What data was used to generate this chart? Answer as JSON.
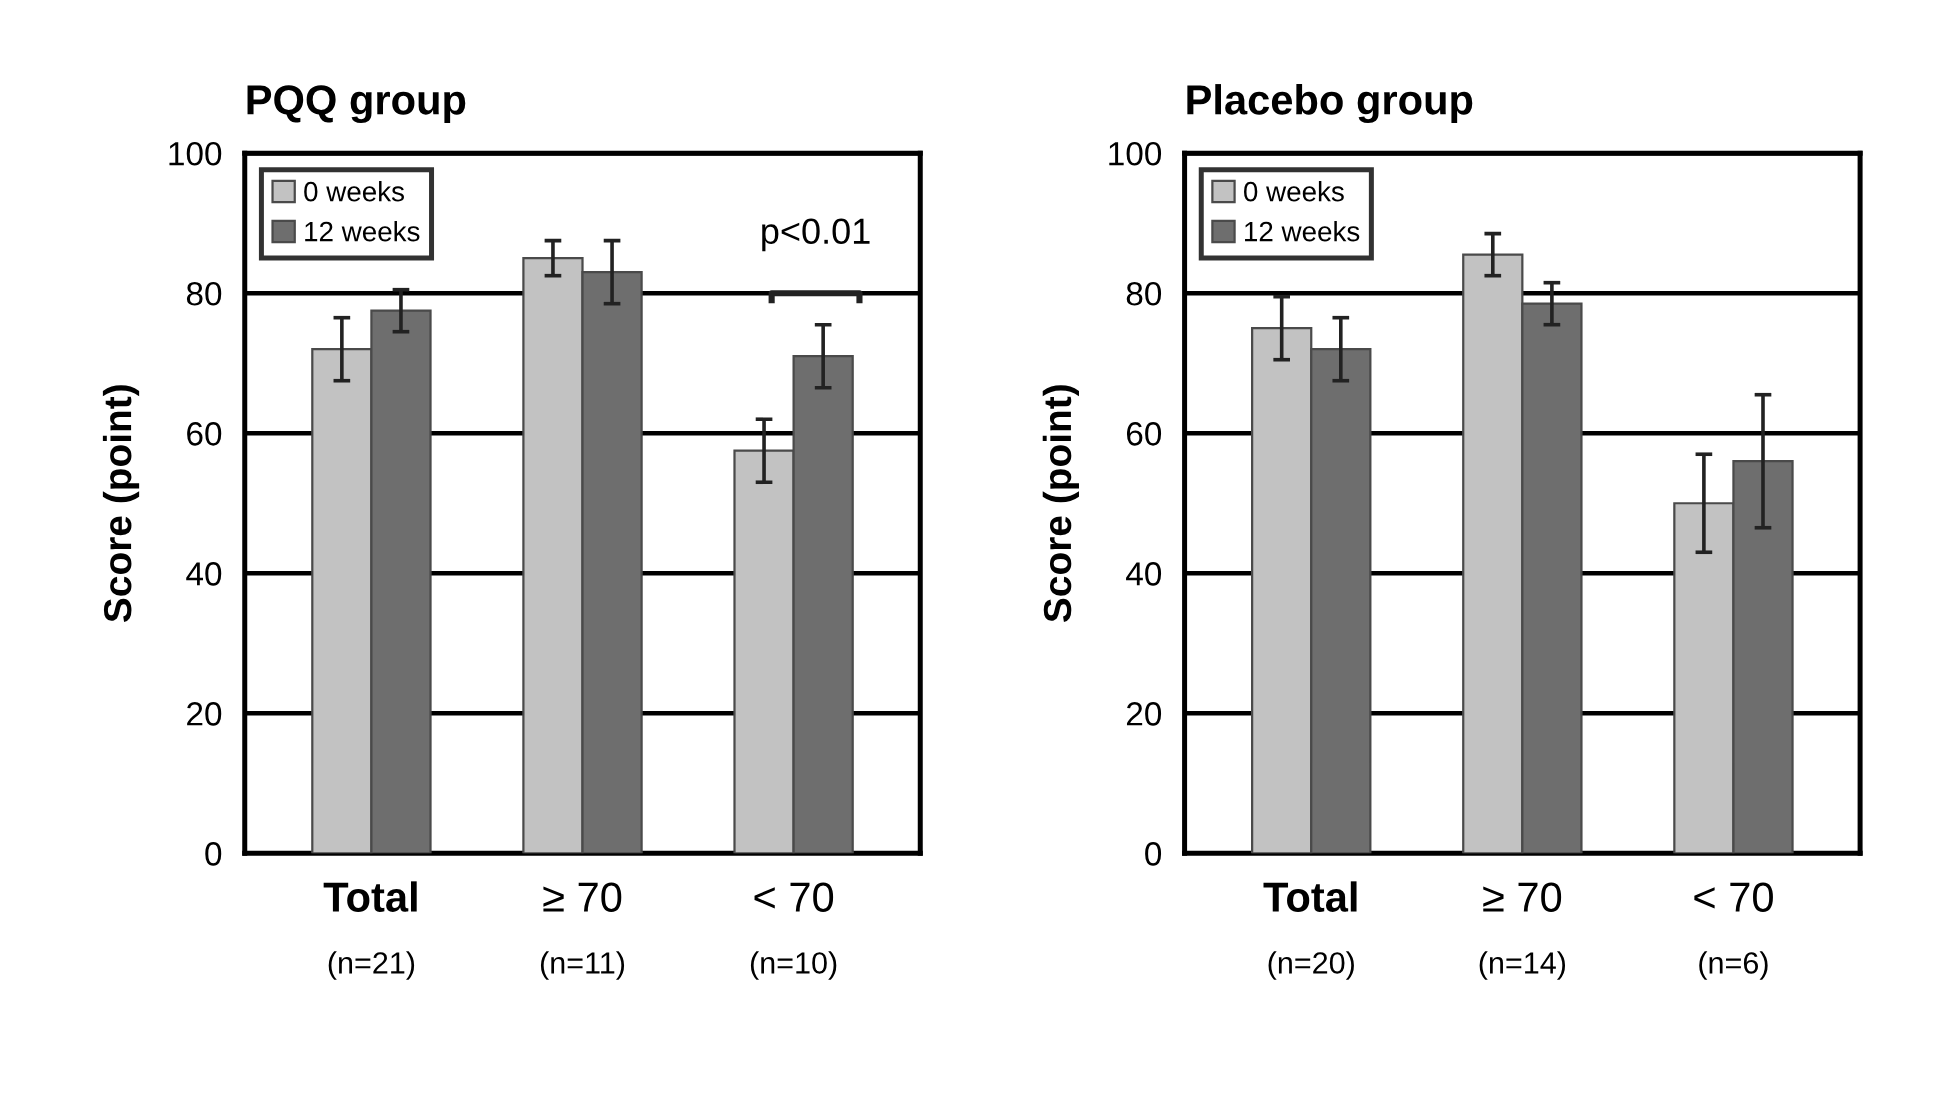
{
  "chart_data": [
    {
      "type": "bar",
      "title": "PQQ group",
      "ylabel": "Score (point)",
      "categories": [
        "Total\n(n=21)",
        "≥ 70\n(n=11)",
        "< 70\n(n=10)"
      ],
      "series": [
        {
          "name": "0 weeks",
          "color": "#c2c2c2",
          "values": [
            72,
            85,
            57.5
          ],
          "errors": [
            4.5,
            2.5,
            4.5
          ]
        },
        {
          "name": "12 weeks",
          "color": "#6e6e6e",
          "values": [
            77.5,
            83,
            71
          ],
          "errors": [
            3,
            4.5,
            4.5
          ]
        }
      ],
      "ylim": [
        0,
        100
      ],
      "yticks": [
        0,
        20,
        40,
        60,
        80,
        100
      ],
      "grid": "y",
      "legend": "top left",
      "annotations": [
        "p<0.01"
      ]
    },
    {
      "type": "bar",
      "title": "Placebo group",
      "ylabel": "Score (point)",
      "categories": [
        "Total\n(n=20)",
        "≥ 70\n(n=14)",
        "< 70\n(n=6)"
      ],
      "series": [
        {
          "name": "0 weeks",
          "color": "#c2c2c2",
          "values": [
            75,
            85.5,
            50
          ],
          "errors": [
            4.5,
            3,
            7
          ]
        },
        {
          "name": "12 weeks",
          "color": "#6e6e6e",
          "values": [
            72,
            78.5,
            56
          ],
          "errors": [
            4.5,
            3,
            9.5
          ]
        }
      ],
      "ylim": [
        0,
        100
      ],
      "yticks": [
        0,
        20,
        40,
        60,
        80,
        100
      ],
      "grid": "y",
      "legend": "top left"
    }
  ]
}
